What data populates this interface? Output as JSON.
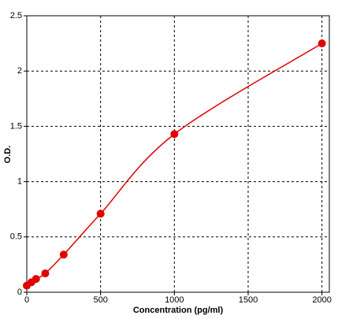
{
  "chart_data": {
    "type": "line",
    "x_label": "Concentration (pg/ml)",
    "y_label": "O.D.",
    "x": [
      0,
      31.25,
      62.5,
      125,
      250,
      500,
      1000,
      2000
    ],
    "series": [
      {
        "color": "#e00000",
        "values": [
          0.06,
          0.09,
          0.12,
          0.17,
          0.34,
          0.71,
          1.43,
          2.25
        ]
      }
    ],
    "xlim": [
      0,
      2050
    ],
    "ylim": [
      0,
      2.5
    ],
    "xticks": [
      0,
      500,
      1000,
      1500,
      2000
    ],
    "yticks": [
      0,
      0.5,
      1,
      1.5,
      2,
      2.5
    ],
    "grid": true
  }
}
